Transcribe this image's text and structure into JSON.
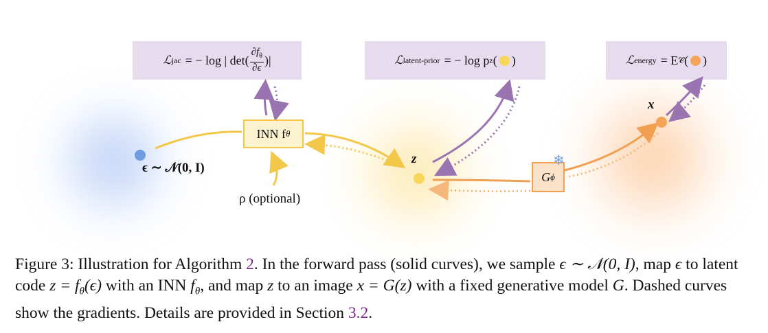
{
  "colors": {
    "yellow": "#f3c84a",
    "orange": "#f0a050",
    "purple": "#9a74b0",
    "blue": "#6f9be0",
    "lossbox_bg": "#e7dcee",
    "link": "#7a2a8a"
  },
  "figure": {
    "losses": {
      "jac": {
        "symbol": "ℒ",
        "sub": "jac",
        "rhs_prefix": "= − log | det(",
        "frac_num": "∂f",
        "frac_num_sub": "θ",
        "frac_den": "∂ϵ",
        "rhs_suffix": ")|"
      },
      "latent_prior": {
        "symbol": "ℒ",
        "sub": "latent-prior",
        "rhs_prefix": "= − log p",
        "p_sub": "z",
        "open": "(",
        "close": ")"
      },
      "energy": {
        "symbol": "ℒ",
        "sub": "energy",
        "rhs_prefix": "= E",
        "e_sub": "𝒞",
        "open": "(",
        "close": ")"
      }
    },
    "nodes": {
      "epsilon_label": "ϵ ∼ 𝒩(0, I)",
      "inn_label": "INN f",
      "inn_sub": "θ",
      "rho_label": "ρ (optional)",
      "z_label": "z",
      "x_label": "x",
      "g_label": "G",
      "g_sub": "ϕ",
      "snowflake_icon": "snowflake-icon"
    }
  },
  "caption": {
    "prefix": "Figure 3:  Illustration for Algorithm ",
    "algo_ref": "2",
    "seg1": ". In the forward pass (solid curves), we sample ",
    "seg2": "ϵ ∼ 𝒩(0, I)",
    "seg3": ", map ",
    "seg4": "ϵ",
    "seg5": " to latent code ",
    "seg6": "z = f",
    "seg6_sub": "θ",
    "seg7": "(ϵ)",
    "seg8": " with an INN ",
    "seg9": "f",
    "seg9_sub": "θ",
    "seg10": ", and map ",
    "seg11": "z",
    "seg12": " to an image ",
    "seg13": "x = G(z)",
    "seg14": " with a fixed generative model ",
    "seg15": "G",
    "seg16": ". Dashed curves show the gradients. Details are provided in Section ",
    "section_ref": "3.2",
    "seg17": "."
  }
}
